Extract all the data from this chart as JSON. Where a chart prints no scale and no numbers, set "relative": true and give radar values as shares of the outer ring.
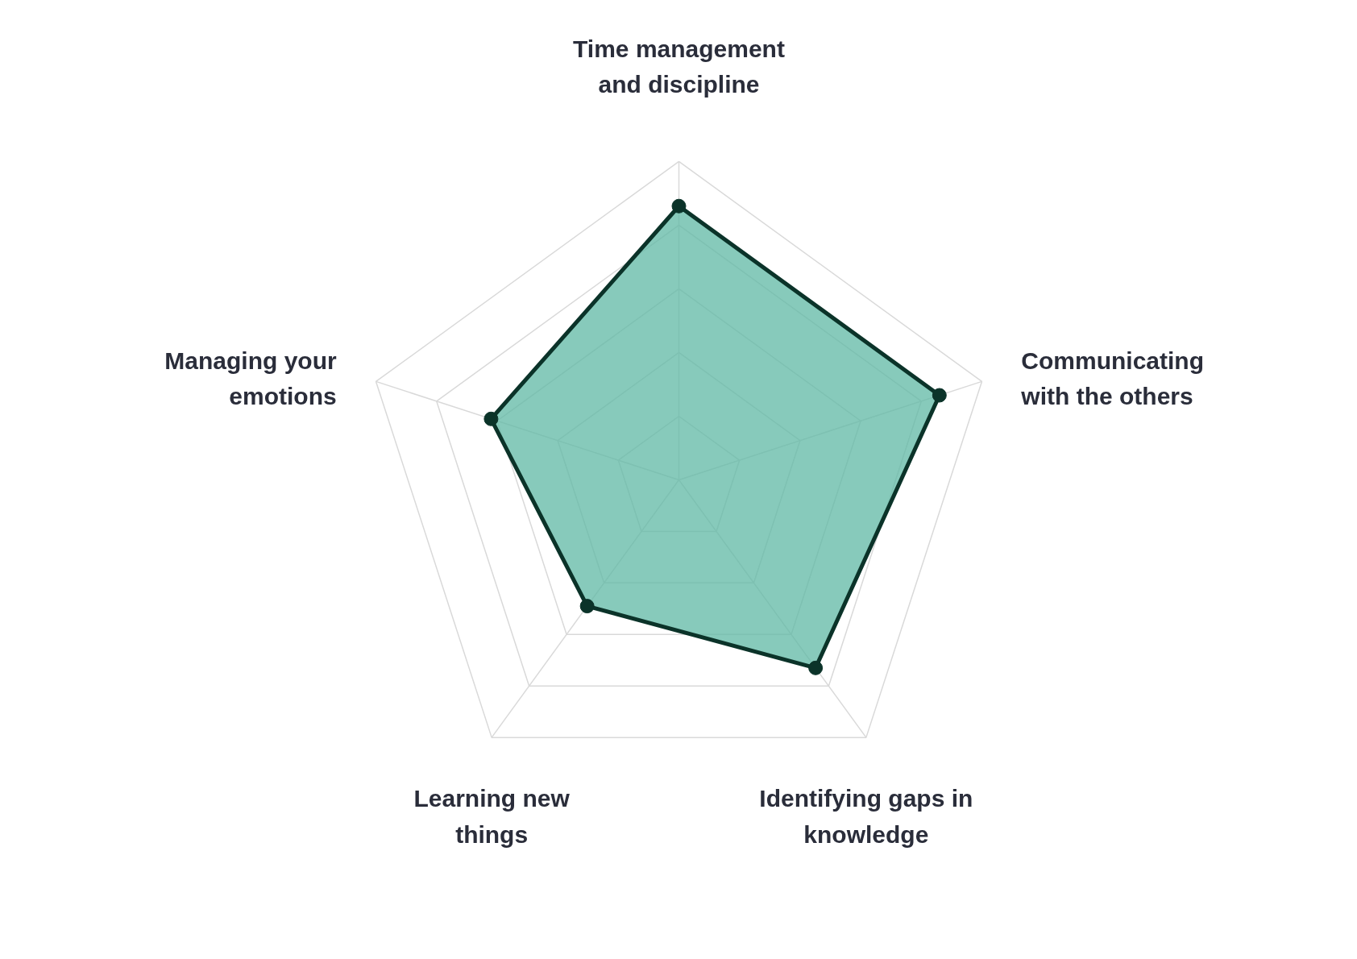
{
  "chart_data": {
    "type": "radar",
    "relative": true,
    "categories": [
      "Time management\nand discipline",
      "Communicating\nwith the others",
      "Identifying gaps in\nknowledge",
      "Learning new\nthings",
      "Managing your\nemotions"
    ],
    "series": [
      {
        "color": "#0b3329",
        "values": [
          0.86,
          0.86,
          0.73,
          0.49,
          0.62
        ]
      }
    ],
    "grid": true,
    "marker": "circle"
  }
}
